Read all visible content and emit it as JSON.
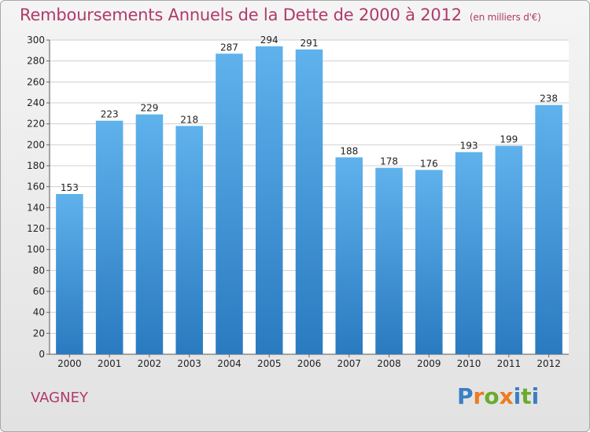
{
  "title": "Remboursements Annuels de la Dette de 2000 à 2012",
  "unit": "(en milliers d'€)",
  "city": "VAGNEY",
  "logo": [
    "P",
    "r",
    "o",
    "x",
    "i",
    "t",
    "i"
  ],
  "colors": {
    "title": "#b03a6a",
    "bar_top": "#5fb2ec",
    "bar_bottom": "#2a7ac0",
    "logo": [
      "#3a7fc4",
      "#ee7b1e",
      "#6aab2c",
      "#ee7b1e",
      "#3a7fc4",
      "#6aab2c",
      "#3a7fc4"
    ]
  },
  "chart_data": {
    "type": "bar",
    "title": "Remboursements Annuels de la Dette de 2000 à 2012",
    "categories": [
      "2000",
      "2001",
      "2002",
      "2003",
      "2004",
      "2005",
      "2006",
      "2007",
      "2008",
      "2009",
      "2010",
      "2011",
      "2012"
    ],
    "values": [
      153,
      223,
      229,
      218,
      287,
      294,
      291,
      188,
      178,
      176,
      193,
      199,
      238
    ],
    "ylim": [
      0,
      300
    ],
    "yticks": [
      0,
      20,
      40,
      60,
      80,
      100,
      120,
      140,
      160,
      180,
      200,
      220,
      240,
      260,
      280,
      300
    ],
    "grid": true,
    "xlabel": "",
    "ylabel": ""
  }
}
